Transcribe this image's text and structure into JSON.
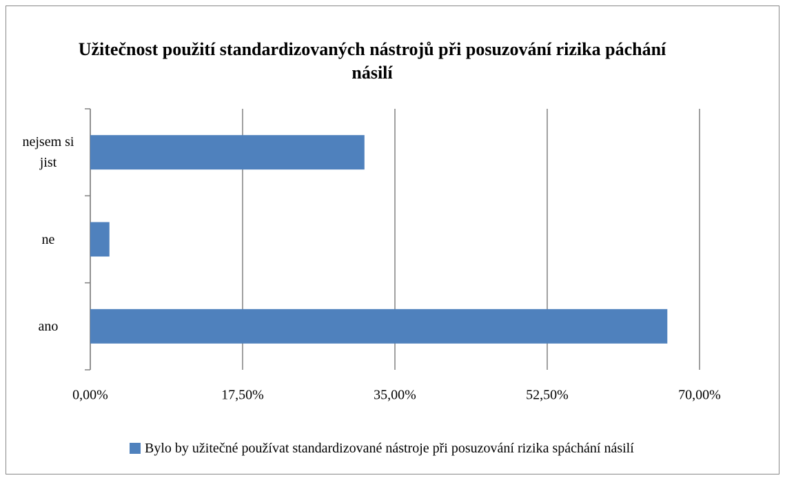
{
  "chart_data": {
    "type": "bar",
    "orientation": "horizontal",
    "title": "Užitečnost použití standardizovaných nástrojů při posuzování rizika páchání násilí",
    "categories": [
      "ano",
      "ne",
      "nejsem si jist"
    ],
    "series": [
      {
        "name": "Bylo by užitečné používat standardizované nástroje při posuzování rizika spáchání násilí",
        "color": "#4f81bd",
        "values": [
          66.3,
          2.2,
          31.5
        ]
      }
    ],
    "xlim": [
      0,
      70
    ],
    "xticks": [
      {
        "value": 0,
        "label": "0,00%"
      },
      {
        "value": 17.5,
        "label": "17,50%"
      },
      {
        "value": 35,
        "label": "35,00%"
      },
      {
        "value": 52.5,
        "label": "52,50%"
      },
      {
        "value": 70,
        "label": "70,00%"
      }
    ],
    "grid": true,
    "legend": "bottom"
  }
}
